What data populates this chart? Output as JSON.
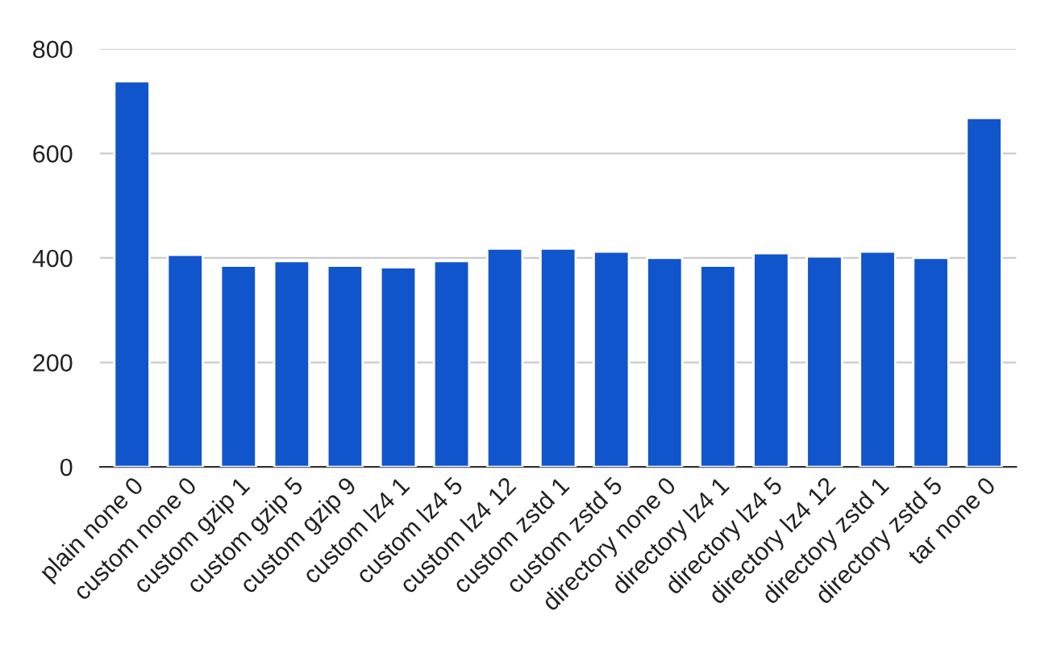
{
  "chart_data": {
    "type": "bar",
    "categories": [
      "plain none 0",
      "custom none 0",
      "custom gzip 1",
      "custom gzip 5",
      "custom gzip 9",
      "custom lz4 1",
      "custom lz4 5",
      "custom lz4 12",
      "custom zstd 1",
      "custom zstd 5",
      "directory none 0",
      "directory lz4 1",
      "directory lz4 5",
      "directory lz4 12",
      "directory zstd 1",
      "directory zstd 5",
      "tar none 0"
    ],
    "values": [
      738,
      406,
      385,
      394,
      385,
      382,
      394,
      418,
      418,
      412,
      400,
      385,
      409,
      403,
      412,
      400,
      668
    ],
    "color": "#1155cc",
    "ylim": [
      0,
      800
    ],
    "yticks": [
      0,
      200,
      400,
      600,
      800
    ],
    "grid": "y"
  }
}
